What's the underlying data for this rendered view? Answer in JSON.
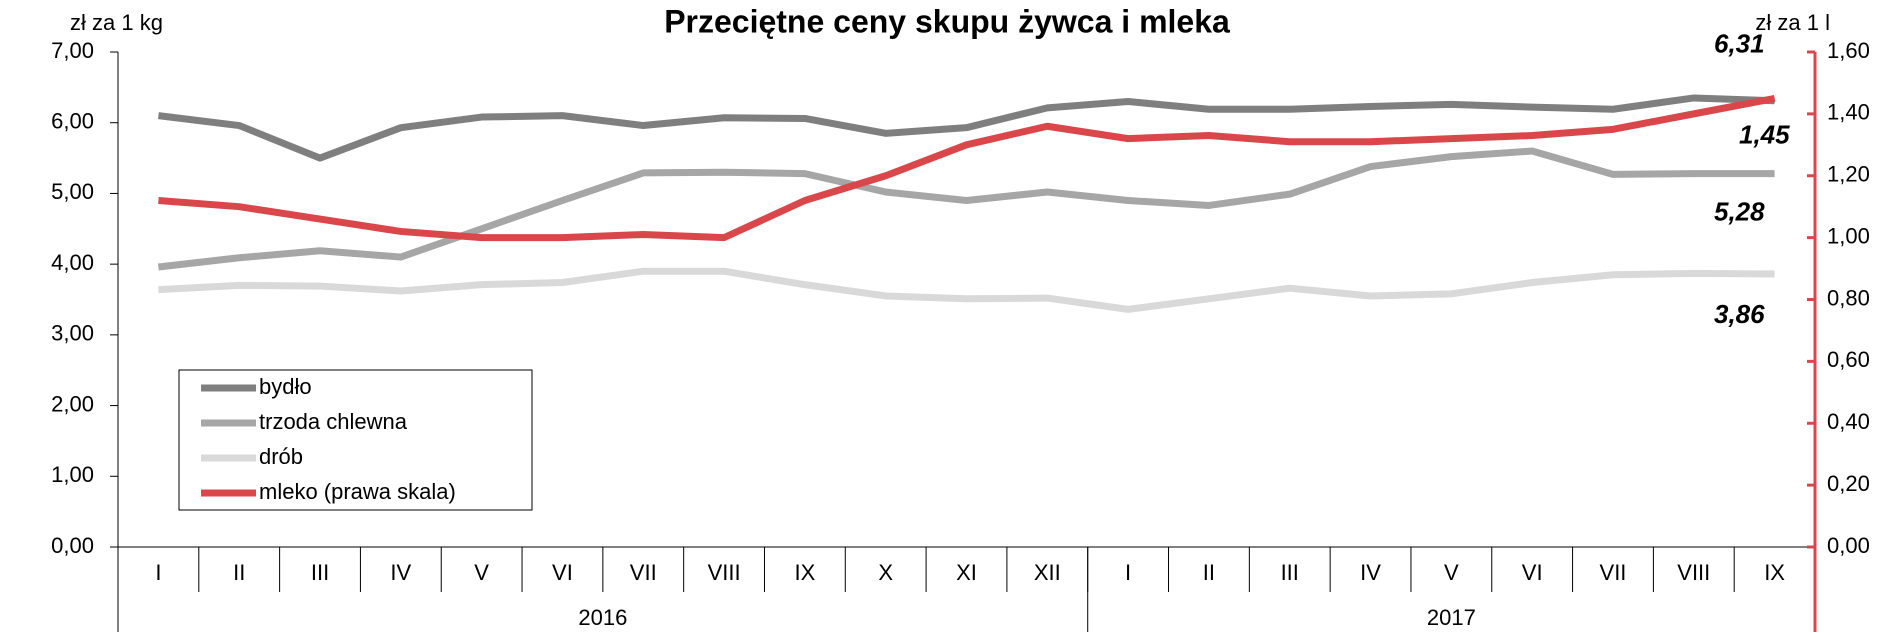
{
  "chart_data": {
    "type": "line",
    "title": "Przeciętne ceny skupu żywca i mleka",
    "y_label": "zł za 1 kg",
    "y2_label": "zł za 1 l",
    "categories": [
      "I",
      "II",
      "III",
      "IV",
      "V",
      "VI",
      "VII",
      "VIII",
      "IX",
      "X",
      "XI",
      "XII",
      "I",
      "II",
      "III",
      "IV",
      "V",
      "VI",
      "VII",
      "VIII",
      "IX"
    ],
    "year_groups": [
      {
        "label": "2016",
        "count": 12
      },
      {
        "label": "2017",
        "count": 9
      }
    ],
    "ylim": [
      0,
      7
    ],
    "yticks": [
      {
        "value": 0,
        "label": "0,00"
      },
      {
        "value": 1,
        "label": "1,00"
      },
      {
        "value": 2,
        "label": "2,00"
      },
      {
        "value": 3,
        "label": "3,00"
      },
      {
        "value": 4,
        "label": "4,00"
      },
      {
        "value": 5,
        "label": "5,00"
      },
      {
        "value": 6,
        "label": "6,00"
      },
      {
        "value": 7,
        "label": "7,00"
      }
    ],
    "y2lim": [
      0,
      1.6
    ],
    "y2ticks": [
      {
        "value": 0,
        "label": "0,00"
      },
      {
        "value": 0.2,
        "label": "0,20"
      },
      {
        "value": 0.4,
        "label": "0,40"
      },
      {
        "value": 0.6,
        "label": "0,60"
      },
      {
        "value": 0.8,
        "label": "0,80"
      },
      {
        "value": 1,
        "label": "1,00"
      },
      {
        "value": 1.2,
        "label": "1,20"
      },
      {
        "value": 1.4,
        "label": "1,40"
      },
      {
        "value": 1.6,
        "label": "1,60"
      }
    ],
    "y2_color": "#d9474b",
    "legend": "lower-left",
    "series": [
      {
        "name": "bydło",
        "color": "#7f7f7f",
        "label_color": "#7f7f7f",
        "values": [
          6.1,
          5.96,
          5.5,
          5.93,
          6.08,
          6.1,
          5.96,
          6.07,
          6.06,
          5.85,
          5.93,
          6.21,
          6.3,
          6.19,
          6.19,
          6.23,
          6.26,
          6.22,
          6.19,
          6.35,
          6.31
        ],
        "value_labels": [
          null,
          null,
          null,
          null,
          null,
          null,
          null,
          null,
          null,
          null,
          null,
          null,
          null,
          null,
          null,
          null,
          null,
          null,
          null,
          null,
          "6,31"
        ]
      },
      {
        "name": "trzoda chlewna",
        "color": "#a6a6a6",
        "label_color": "#7f7f7f",
        "values": [
          3.96,
          4.09,
          4.19,
          4.1,
          4.5,
          4.9,
          5.29,
          5.3,
          5.28,
          5.02,
          4.9,
          5.02,
          4.9,
          4.83,
          4.99,
          5.38,
          5.52,
          5.6,
          5.27,
          5.28,
          5.28
        ],
        "value_labels": [
          null,
          null,
          null,
          null,
          null,
          null,
          null,
          null,
          null,
          null,
          null,
          null,
          null,
          null,
          null,
          null,
          null,
          null,
          null,
          null,
          "5,28"
        ]
      },
      {
        "name": "drób",
        "color": "#d9d9d9",
        "label_color": "#c8c8c8",
        "values": [
          3.64,
          3.7,
          3.69,
          3.62,
          3.71,
          3.74,
          3.9,
          3.9,
          3.71,
          3.55,
          3.51,
          3.52,
          3.36,
          3.51,
          3.66,
          3.55,
          3.58,
          3.74,
          3.85,
          3.87,
          3.86
        ],
        "value_labels": [
          null,
          null,
          null,
          null,
          null,
          null,
          null,
          null,
          null,
          null,
          null,
          null,
          null,
          null,
          null,
          null,
          null,
          null,
          null,
          null,
          "3,86"
        ]
      },
      {
        "name": "mleko (prawa skala)",
        "color": "#d9474b",
        "label_color": "#c00000",
        "axis": "y2",
        "values": [
          1.12,
          1.1,
          1.06,
          1.02,
          1.0,
          1.0,
          1.01,
          1.0,
          1.12,
          1.2,
          1.3,
          1.36,
          1.32,
          1.33,
          1.31,
          1.31,
          1.32,
          1.33,
          1.35,
          1.4,
          1.45
        ],
        "value_labels": [
          null,
          null,
          null,
          null,
          null,
          null,
          null,
          null,
          null,
          null,
          null,
          null,
          null,
          null,
          null,
          null,
          null,
          null,
          null,
          null,
          "1,45"
        ]
      }
    ]
  }
}
